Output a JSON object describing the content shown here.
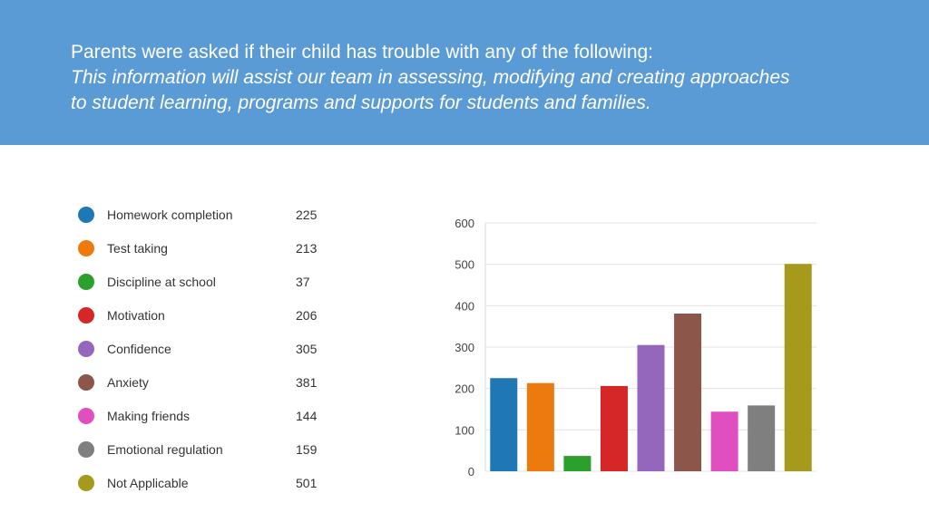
{
  "header": {
    "line1": "Parents were asked if their child has trouble with any of the following:",
    "line2": "This information will assist our team in assessing, modifying and creating approaches",
    "line3": "to student learning, programs and supports for students and families."
  },
  "legend": [
    {
      "label": "Homework completion",
      "value": "225",
      "color": "#1f77b4"
    },
    {
      "label": "Test taking",
      "value": "213",
      "color": "#ec7a0c"
    },
    {
      "label": "Discipline at school",
      "value": "37",
      "color": "#2ca02c"
    },
    {
      "label": "Motivation",
      "value": "206",
      "color": "#d62728"
    },
    {
      "label": "Confidence",
      "value": "305",
      "color": "#9467bd"
    },
    {
      "label": "Anxiety",
      "value": "381",
      "color": "#8c564b"
    },
    {
      "label": "Making friends",
      "value": "144",
      "color": "#e04fbf"
    },
    {
      "label": "Emotional regulation",
      "value": "159",
      "color": "#7f7f7f"
    },
    {
      "label": "Not Applicable",
      "value": "501",
      "color": "#a69a1c"
    }
  ],
  "chart_data": {
    "type": "bar",
    "categories": [
      "Homework completion",
      "Test taking",
      "Discipline at school",
      "Motivation",
      "Confidence",
      "Anxiety",
      "Making friends",
      "Emotional regulation",
      "Not Applicable"
    ],
    "values": [
      225,
      213,
      37,
      206,
      305,
      381,
      144,
      159,
      501
    ],
    "colors": [
      "#1f77b4",
      "#ec7a0c",
      "#2ca02c",
      "#d62728",
      "#9467bd",
      "#8c564b",
      "#e04fbf",
      "#7f7f7f",
      "#a69a1c"
    ],
    "ylim": [
      0,
      600
    ],
    "yticks": [
      "0",
      "100",
      "200",
      "300",
      "400",
      "500",
      "600"
    ],
    "grid": true,
    "title": "",
    "xlabel": "",
    "ylabel": ""
  }
}
